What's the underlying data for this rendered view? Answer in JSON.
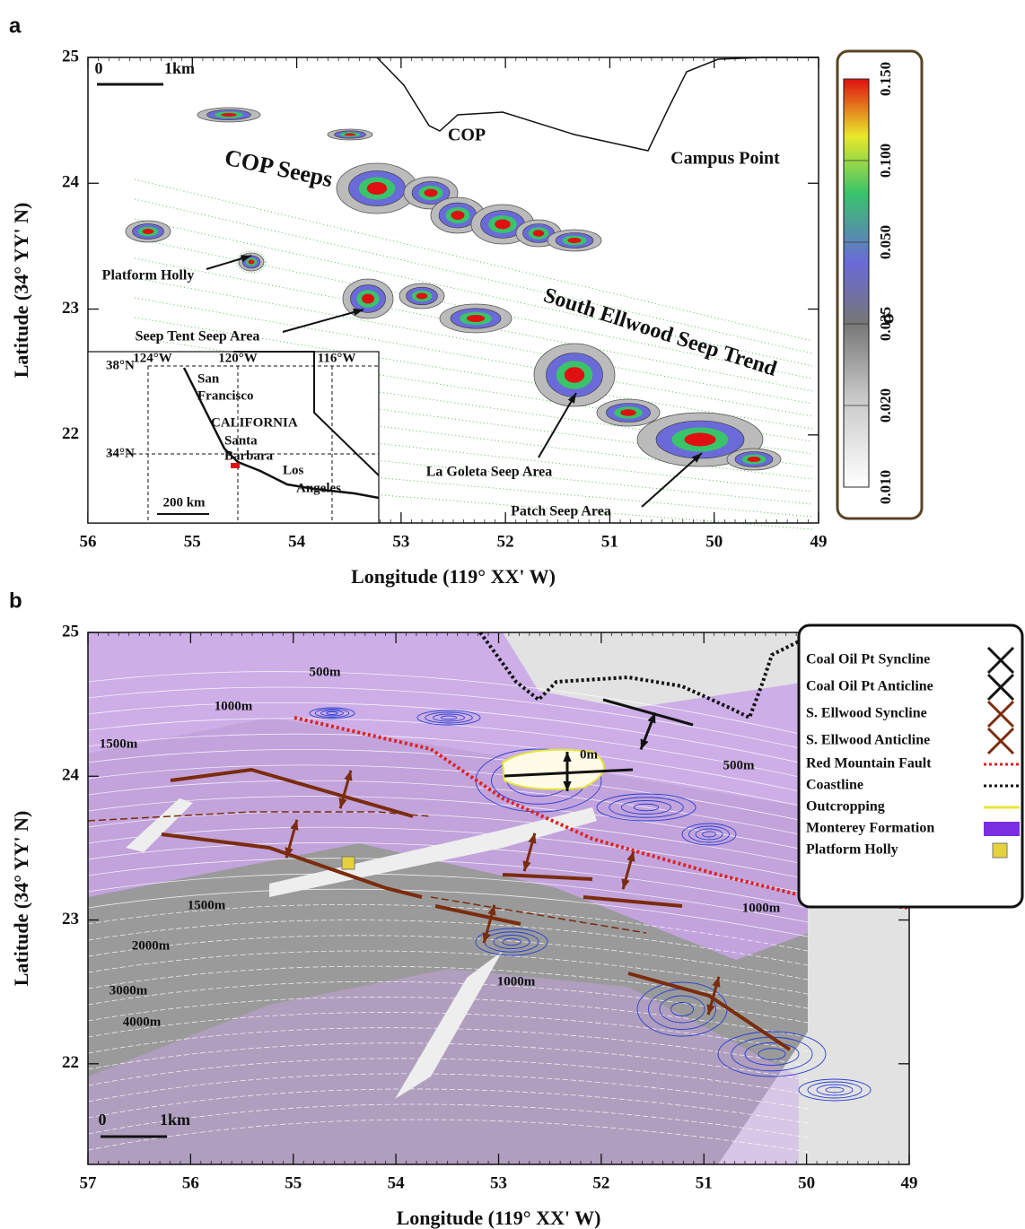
{
  "panel_a": {
    "label": "a",
    "xlabel": "Longitude (119° XX' W)",
    "ylabel": "Latitude (34° YY' N)",
    "xlim": [
      56,
      49
    ],
    "ylim": [
      21.3,
      25
    ],
    "xticks": [
      56,
      55,
      54,
      53,
      52,
      51,
      50,
      49
    ],
    "yticks": [
      22,
      23,
      24,
      25
    ],
    "scale_bar": [
      "0",
      "1km"
    ],
    "annotations": [
      "COP",
      "Campus Point",
      "COP Seeps",
      "Platform Holly",
      "Seep Tent Seep Area",
      "South Ellwood Seep Trend",
      "La Goleta Seep Area",
      "Patch Seep Area"
    ],
    "inset_labels": [
      "38°N",
      "124°W",
      "120°W",
      "116°W",
      "San",
      "Francisco",
      "CALIFORNIA",
      "Santa",
      "Barbara",
      "Los",
      "Angeles",
      "34°N",
      "200 km"
    ],
    "colorbar": {
      "label": "σ",
      "ticks": [
        {
          "value": 0.01,
          "label": "0.010"
        },
        {
          "value": 0.02,
          "label": "0.020"
        },
        0.035,
        {
          "value": 0.05,
          "label": "0.050"
        },
        {
          "value": 0.1,
          "label": "0.100"
        },
        {
          "value": 0.15,
          "label": "0.150"
        }
      ]
    }
  },
  "panel_b": {
    "label": "b",
    "xlabel": "Longitude (119° XX' W)",
    "ylabel": "Latitude (34° YY' N)",
    "xlim": [
      57,
      49
    ],
    "ylim": [
      21.3,
      25
    ],
    "xticks": [
      57,
      56,
      55,
      54,
      53,
      52,
      51,
      50,
      49
    ],
    "yticks": [
      22,
      23,
      24,
      25
    ],
    "scale_bar": [
      "0",
      "1km"
    ],
    "contour_labels": [
      "500m",
      "1000m",
      "1500m",
      "1500m",
      "2000m",
      "3000m",
      "4000m",
      "0m",
      "500m",
      "1000m",
      "1000m"
    ],
    "legend": [
      "Coal Oil Pt Syncline",
      "Coal Oil Pt Anticline",
      "S. Ellwood Syncline",
      "S. Ellwood Anticline",
      "Red Mountain Fault",
      "Coastline",
      "Outcropping",
      "Monterey Formation",
      "Platform Holly"
    ]
  }
}
